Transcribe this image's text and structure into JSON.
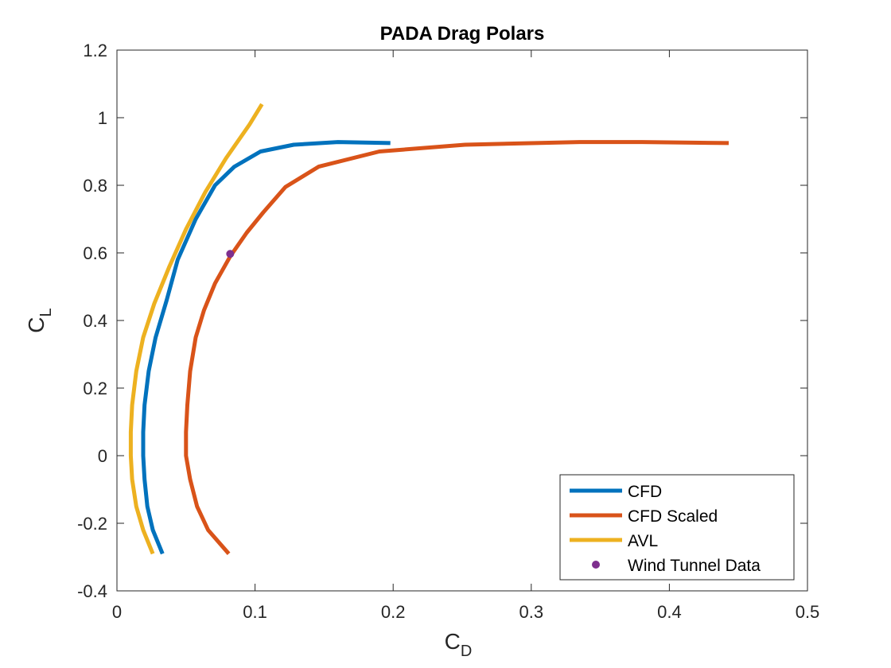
{
  "chart_data": {
    "type": "line",
    "title": "PADA Drag Polars",
    "xlabel": "C",
    "xlabel_sub": "D",
    "ylabel": "C",
    "ylabel_sub": "L",
    "xlim": [
      0,
      0.5
    ],
    "ylim": [
      -0.4,
      1.2
    ],
    "xticks": [
      0,
      0.1,
      0.2,
      0.3,
      0.4,
      0.5
    ],
    "xtick_labels": [
      "0",
      "0.1",
      "0.2",
      "0.3",
      "0.4",
      "0.5"
    ],
    "yticks": [
      -0.4,
      -0.2,
      0,
      0.2,
      0.4,
      0.6,
      0.8,
      1.0,
      1.2
    ],
    "ytick_labels": [
      "-0.4",
      "-0.2",
      "0",
      "0.2",
      "0.4",
      "0.6",
      "0.8",
      "1",
      "1.2"
    ],
    "grid": false,
    "legend_position": "bottom-right",
    "series": [
      {
        "name": "CFD",
        "color": "#0072BD",
        "style": "line",
        "x": [
          0.033,
          0.026,
          0.022,
          0.02,
          0.019,
          0.019,
          0.02,
          0.023,
          0.028,
          0.036,
          0.044,
          0.057,
          0.071,
          0.085,
          0.104,
          0.128,
          0.16,
          0.198
        ],
        "y": [
          -0.29,
          -0.22,
          -0.15,
          -0.07,
          0.0,
          0.07,
          0.15,
          0.25,
          0.35,
          0.46,
          0.58,
          0.7,
          0.8,
          0.855,
          0.9,
          0.92,
          0.928,
          0.925
        ]
      },
      {
        "name": "CFD Scaled",
        "color": "#D95319",
        "style": "line",
        "x": [
          0.081,
          0.066,
          0.058,
          0.053,
          0.05,
          0.05,
          0.051,
          0.053,
          0.057,
          0.063,
          0.071,
          0.082,
          0.094,
          0.106,
          0.122,
          0.146,
          0.19,
          0.252,
          0.335,
          0.38,
          0.443
        ],
        "y": [
          -0.29,
          -0.22,
          -0.15,
          -0.07,
          0.0,
          0.07,
          0.15,
          0.25,
          0.35,
          0.43,
          0.51,
          0.59,
          0.66,
          0.72,
          0.795,
          0.855,
          0.9,
          0.92,
          0.928,
          0.928,
          0.925
        ]
      },
      {
        "name": "AVL",
        "color": "#EDB120",
        "style": "line",
        "x": [
          0.026,
          0.019,
          0.014,
          0.011,
          0.01,
          0.01,
          0.011,
          0.014,
          0.019,
          0.027,
          0.038,
          0.05,
          0.064,
          0.079,
          0.096,
          0.105
        ],
        "y": [
          -0.29,
          -0.22,
          -0.15,
          -0.07,
          0.0,
          0.07,
          0.15,
          0.25,
          0.35,
          0.45,
          0.56,
          0.67,
          0.78,
          0.88,
          0.98,
          1.04
        ]
      },
      {
        "name": "Wind Tunnel Data",
        "color": "#7E2F8E",
        "style": "marker",
        "x": [
          0.082
        ],
        "y": [
          0.597
        ]
      }
    ]
  }
}
